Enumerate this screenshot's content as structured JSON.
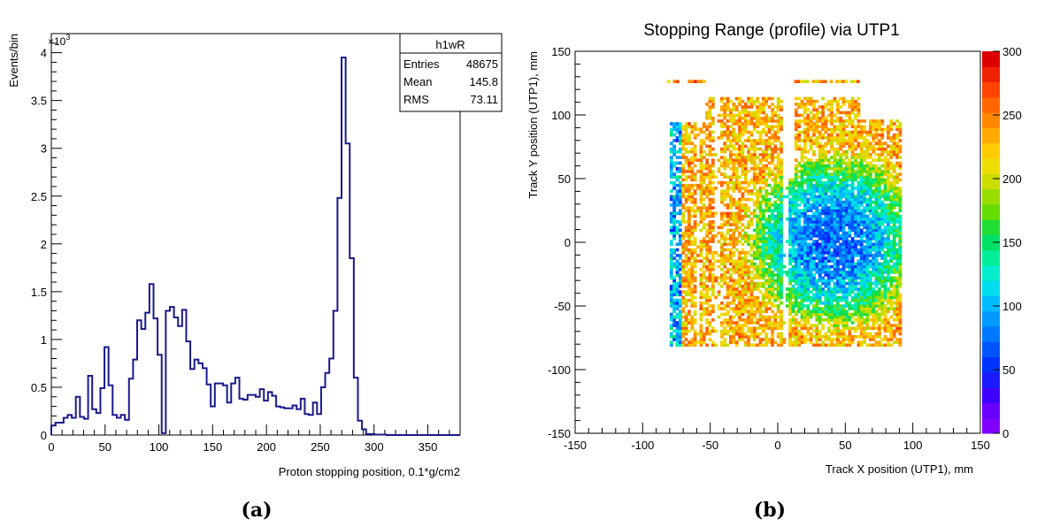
{
  "captions": [
    "(a)",
    "(b)"
  ],
  "chart_data": [
    {
      "type": "bar",
      "style": "step-histogram",
      "title": "",
      "xlabel": "Proton stopping position, 0.1*g/cm2",
      "ylabel": "Events/bin",
      "y_multiplier_label": "×10",
      "y_multiplier_exp": "3",
      "xlim": [
        0,
        380
      ],
      "ylim": [
        0,
        4200
      ],
      "x_ticks": [
        0,
        50,
        100,
        150,
        200,
        250,
        300,
        350
      ],
      "x_tick_labels": [
        "0",
        "50",
        "100",
        "150",
        "200",
        "250",
        "300",
        "350"
      ],
      "y_ticks": [
        0,
        500,
        1000,
        1500,
        2000,
        2500,
        3000,
        3500,
        4000
      ],
      "y_tick_labels": [
        "0",
        "0.5",
        "1",
        "1.5",
        "2",
        "2.5",
        "3",
        "3.5",
        "4"
      ],
      "line_color": "#1a1a8c",
      "bin_width": 3.8,
      "bin_values": [
        100,
        130,
        130,
        180,
        210,
        180,
        400,
        190,
        170,
        620,
        270,
        230,
        490,
        920,
        520,
        210,
        180,
        210,
        160,
        590,
        790,
        1200,
        1110,
        1280,
        1580,
        1220,
        840,
        20,
        1300,
        1340,
        1230,
        1140,
        1310,
        980,
        690,
        790,
        750,
        700,
        530,
        300,
        540,
        540,
        520,
        340,
        540,
        600,
        380,
        370,
        420,
        420,
        400,
        480,
        360,
        450,
        410,
        300,
        290,
        280,
        280,
        310,
        270,
        380,
        220,
        210,
        340,
        220,
        500,
        650,
        800,
        1300,
        2480,
        3950,
        3050,
        1850,
        600,
        150,
        60,
        10,
        10,
        5,
        5,
        5,
        0,
        0,
        0,
        0,
        0,
        0,
        0,
        0,
        0,
        0,
        0,
        0,
        0,
        0,
        0,
        0,
        0,
        0
      ],
      "stats_box": {
        "title": "h1wR",
        "rows": [
          {
            "label": "Entries",
            "value": "48675"
          },
          {
            "label": "Mean",
            "value": "145.8"
          },
          {
            "label": "RMS",
            "value": "73.11"
          }
        ]
      }
    },
    {
      "type": "heatmap",
      "title": "Stopping Range (profile) via UTP1",
      "xlabel": "Track X position (UTP1), mm",
      "ylabel": "Track Y position (UTP1), mm",
      "xlim": [
        -150,
        150
      ],
      "ylim": [
        -150,
        150
      ],
      "x_ticks": [
        -150,
        -100,
        -50,
        0,
        50,
        100,
        150
      ],
      "x_tick_labels": [
        "-150",
        "-100",
        "-50",
        "0",
        "50",
        "100",
        "150"
      ],
      "y_ticks": [
        -150,
        -100,
        -50,
        0,
        50,
        100,
        150
      ],
      "y_tick_labels": [
        "-150",
        "-100",
        "-50",
        "0",
        "50",
        "100",
        "150"
      ],
      "zlim": [
        0,
        300
      ],
      "z_ticks": [
        0,
        50,
        100,
        150,
        200,
        250,
        300
      ],
      "z_tick_labels": [
        "0",
        "50",
        "100",
        "150",
        "200",
        "250",
        "300"
      ],
      "palette": [
        "#7f00ff",
        "#6a00ff",
        "#3d00ff",
        "#1a1aff",
        "#0033ff",
        "#0055ff",
        "#0077ff",
        "#0099ff",
        "#00bbff",
        "#00ddee",
        "#00eecc",
        "#00ee99",
        "#00e066",
        "#22dd33",
        "#66dd00",
        "#99dd00",
        "#ccdd00",
        "#eedd00",
        "#ffcc00",
        "#ffaa00",
        "#ff8800",
        "#ff6600",
        "#ff4400",
        "#ee2200",
        "#dd0000"
      ],
      "region": {
        "x_range": [
          -80,
          90
        ],
        "y_range": [
          -82,
          112
        ],
        "top_strip_y": 125,
        "top_strip_x_ranges": [
          [
            -82,
            -55
          ],
          [
            12,
            60
          ]
        ],
        "gap_x_ranges": [
          [
            -62,
            -58
          ],
          [
            -47,
            -43
          ],
          [
            3,
            7
          ]
        ],
        "cold_center": [
          40,
          0
        ],
        "level_center": 70,
        "level_edge": 230
      }
    }
  ]
}
